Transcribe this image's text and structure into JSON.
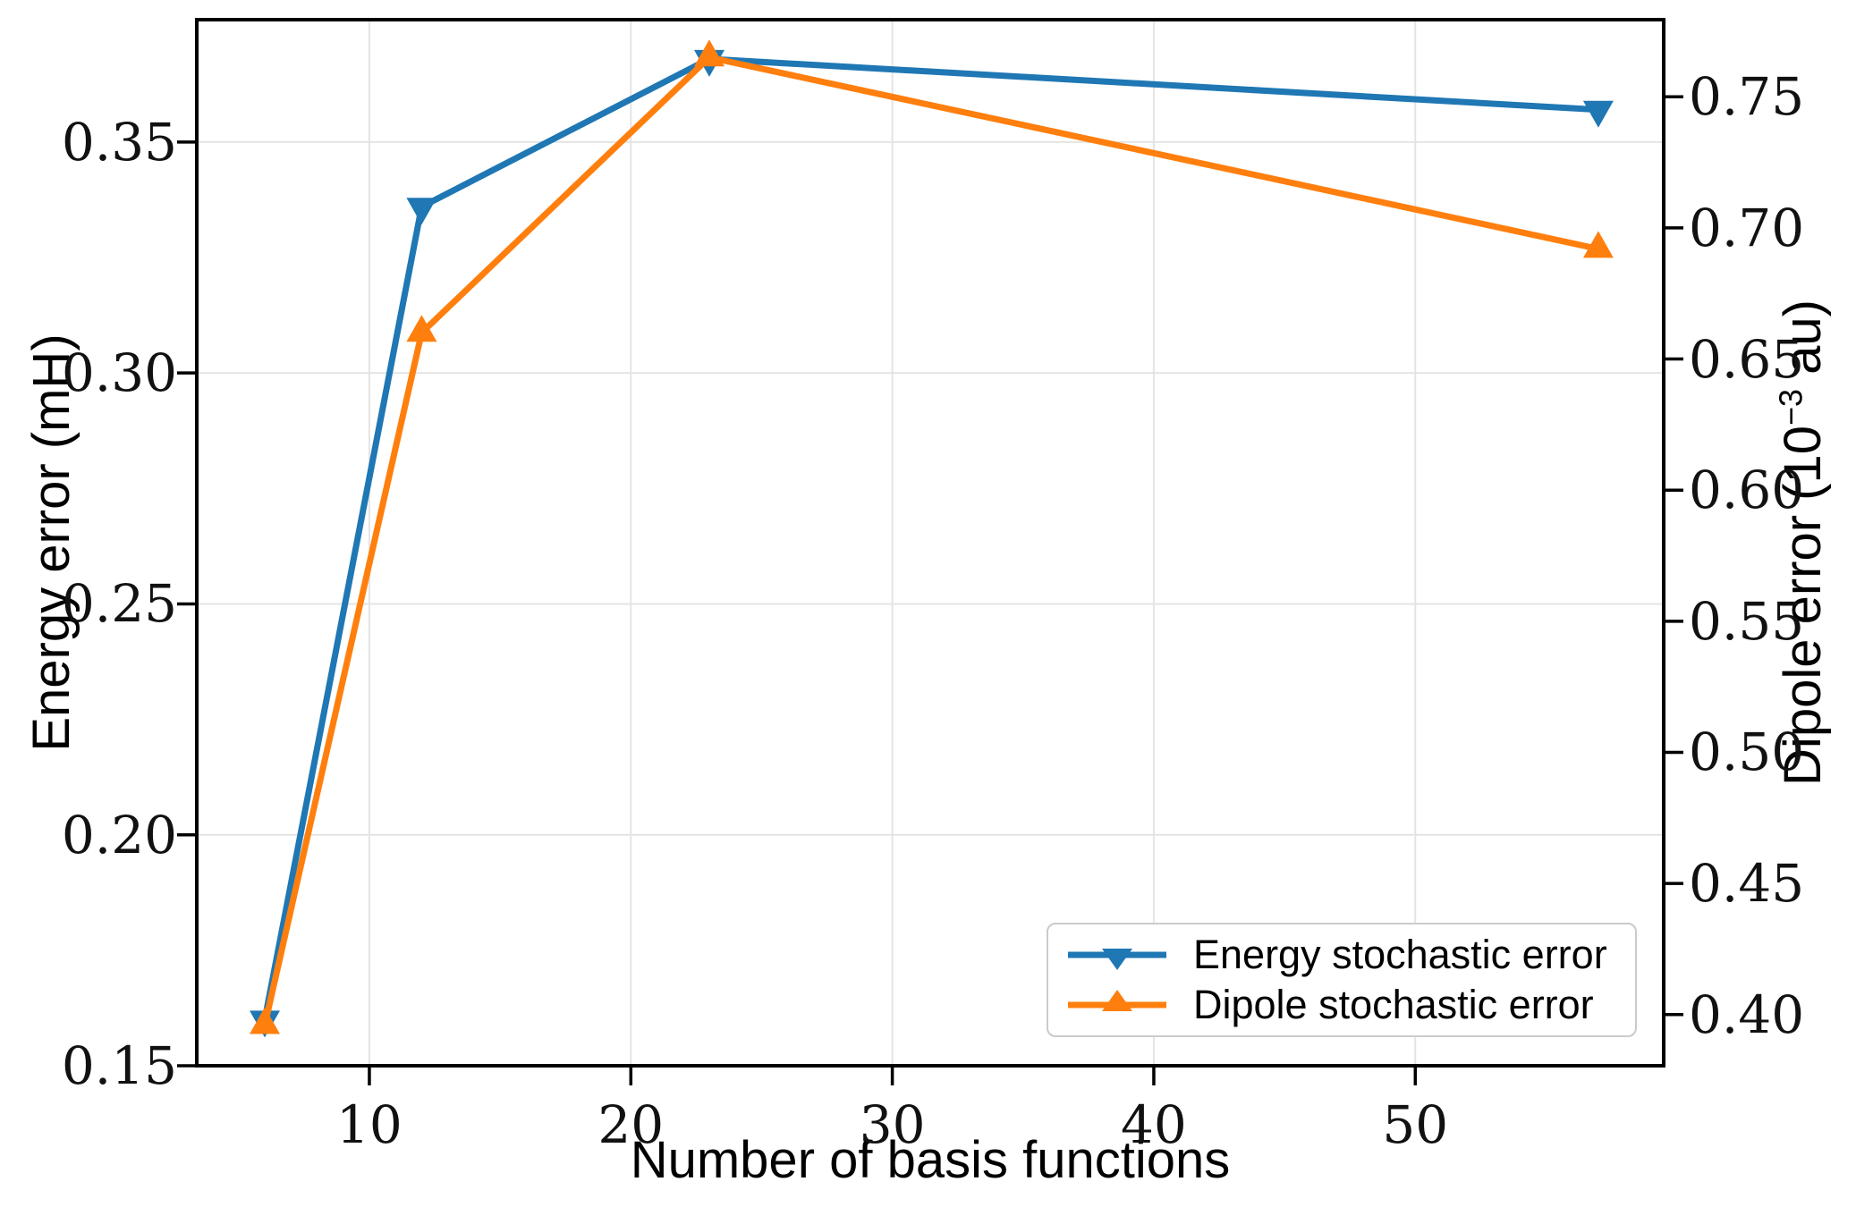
{
  "chart_data": {
    "type": "line",
    "title": "",
    "xlabel": "Number of basis functions",
    "ylabel_left": "Energy error (mH)",
    "ylabel_right": "Dipole error (10⁻³ au)",
    "x": [
      6,
      12,
      23,
      57
    ],
    "series": [
      {
        "name": "Energy stochastic error",
        "axis": "left",
        "color": "#1f77b4",
        "marker": "triangle-down",
        "values": [
          0.16,
          0.336,
          0.368,
          0.357
        ]
      },
      {
        "name": "Dipole stochastic error",
        "axis": "right",
        "color": "#ff7f0e",
        "marker": "triangle-up",
        "values": [
          0.396,
          0.66,
          0.765,
          0.692
        ]
      }
    ],
    "x_tick_labels": [
      "10",
      "20",
      "30",
      "40",
      "50"
    ],
    "x_ticks": [
      10,
      20,
      30,
      40,
      50
    ],
    "y_tick_labels_left": [
      "0.15",
      "0.20",
      "0.25",
      "0.30",
      "0.35"
    ],
    "y_ticks_left": [
      0.15,
      0.2,
      0.25,
      0.3,
      0.35
    ],
    "y_tick_labels_right": [
      "0.40",
      "0.45",
      "0.50",
      "0.55",
      "0.60",
      "0.65",
      "0.70",
      "0.75"
    ],
    "y_ticks_right": [
      0.4,
      0.45,
      0.5,
      0.55,
      0.6,
      0.65,
      0.7,
      0.75
    ],
    "xlim": [
      3.4,
      59.5
    ],
    "ylim_left": [
      0.15,
      0.3765
    ],
    "ylim_right": [
      0.3805,
      0.7794
    ],
    "grid": true,
    "legend_position": "lower right"
  },
  "labels": {
    "ylabel_right_pre": "Dipole error (10",
    "ylabel_right_sup": "−3",
    "ylabel_right_post": " au)"
  },
  "colors": {
    "energy_series": "#1f77b4",
    "dipole_series": "#ff7f0e",
    "grid": "#e4e4e4",
    "spine": "#000000",
    "legend_border": "#cbcbcb",
    "background": "#ffffff"
  }
}
